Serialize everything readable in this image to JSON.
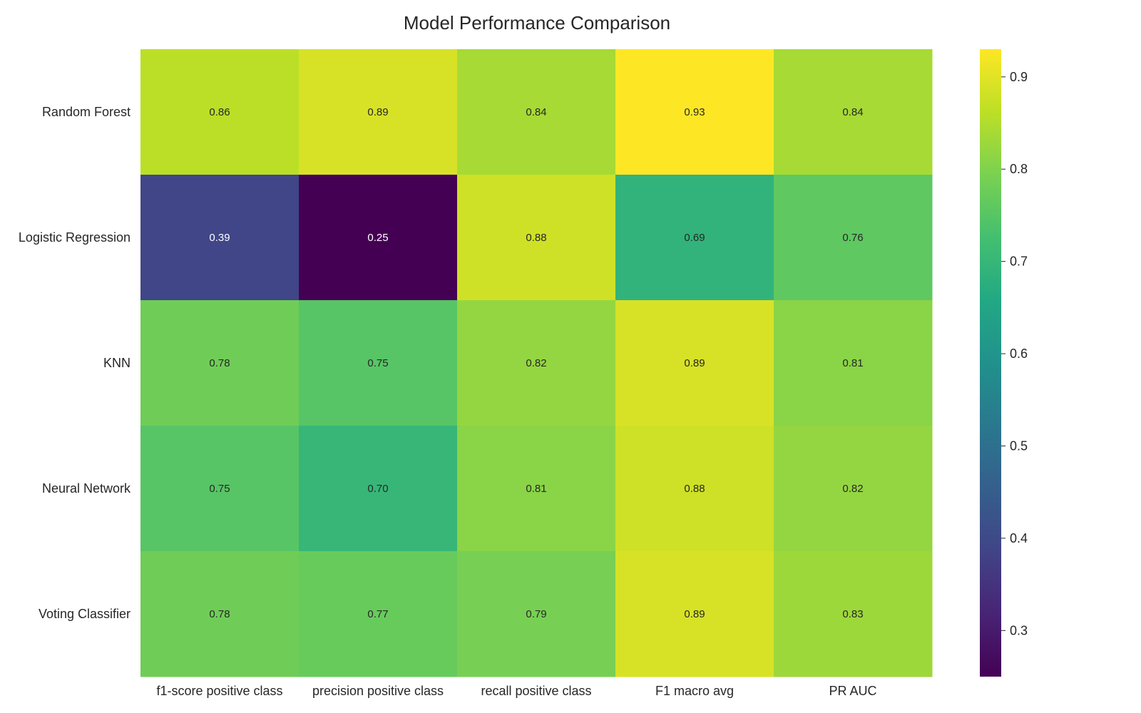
{
  "chart_data": {
    "type": "heatmap",
    "title": "Model Performance Comparison",
    "xlabel": "",
    "ylabel": "",
    "rows": [
      "Random Forest",
      "Logistic Regression",
      "KNN",
      "Neural Network",
      "Voting Classifier"
    ],
    "columns": [
      "f1-score positive class",
      "precision positive class",
      "recall positive class",
      "F1 macro avg",
      "PR AUC"
    ],
    "values": [
      [
        0.86,
        0.89,
        0.84,
        0.93,
        0.84
      ],
      [
        0.39,
        0.25,
        0.88,
        0.69,
        0.76
      ],
      [
        0.78,
        0.75,
        0.82,
        0.89,
        0.81
      ],
      [
        0.75,
        0.7,
        0.81,
        0.88,
        0.82
      ],
      [
        0.78,
        0.77,
        0.79,
        0.89,
        0.83
      ]
    ],
    "value_format": "0.00",
    "colormap": "viridis",
    "colorbar": {
      "range": [
        0.25,
        0.93
      ],
      "ticks": [
        0.3,
        0.4,
        0.5,
        0.6,
        0.7,
        0.8,
        0.9
      ],
      "tick_labels": [
        "0.3",
        "0.4",
        "0.5",
        "0.6",
        "0.7",
        "0.8",
        "0.9"
      ]
    },
    "grid": false
  }
}
